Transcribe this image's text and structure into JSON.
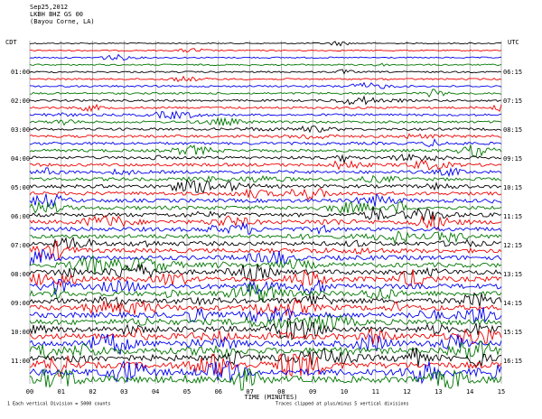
{
  "header": {
    "date": "Sep25,2012",
    "station": "LKBH BHZ GS 00",
    "location": "(Bayou Corne, LA)"
  },
  "left_label": "CDT",
  "right_label": "UTC",
  "left_times": [
    "01:00",
    "02:00",
    "03:00",
    "04:00",
    "05:00",
    "06:00",
    "07:00",
    "08:00",
    "09:00",
    "10:00",
    "11:00"
  ],
  "right_times": [
    "06:15",
    "07:15",
    "08:15",
    "09:15",
    "10:15",
    "11:15",
    "12:15",
    "13:15",
    "14:15",
    "15:15",
    "16:15"
  ],
  "x_labels": [
    "00",
    "01",
    "02",
    "03",
    "04",
    "05",
    "06",
    "07",
    "08",
    "09",
    "10",
    "11",
    "12",
    "13",
    "14",
    "15"
  ],
  "x_title": "TIME (MINUTES)",
  "footer": {
    "left": "1 Each vertical Division = 5000 counts",
    "right": "Traces clipped at plus/minus 5 vertical divisions"
  }
}
